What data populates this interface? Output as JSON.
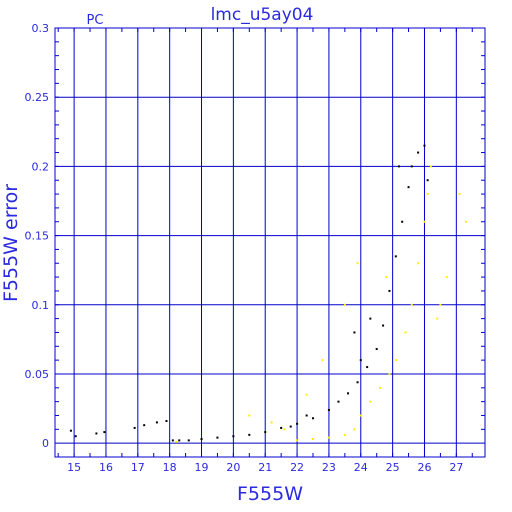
{
  "chart_data": {
    "type": "scatter",
    "title": "lmc_u5ay04",
    "corner_label": "PC",
    "xlabel": "F555W",
    "ylabel": "F555W error",
    "xlim": [
      14.4,
      27.9
    ],
    "ylim": [
      -0.01,
      0.3
    ],
    "x_ticks": [
      15,
      16,
      17,
      18,
      19,
      20,
      21,
      22,
      23,
      24,
      25,
      26,
      27
    ],
    "x_tick_labels": [
      "15",
      "16",
      "17",
      "18",
      "19",
      "20",
      "21",
      "22",
      "23",
      "24",
      "25",
      "26",
      "27"
    ],
    "y_ticks": [
      0,
      0.05,
      0.1,
      0.15,
      0.2,
      0.25,
      0.3
    ],
    "y_tick_labels": [
      "0",
      "0.05",
      "0.1",
      "0.15",
      "0.2",
      "0.25",
      "0.3"
    ],
    "grid": true,
    "colors": {
      "axes": "#0000cc",
      "text": "#2a2ae0",
      "series_black": "#000000",
      "series_yellow": "#ffee00"
    },
    "series": [
      {
        "color": "black",
        "points": [
          [
            14.9,
            0.009
          ],
          [
            15.05,
            0.005
          ],
          [
            15.7,
            0.007
          ],
          [
            15.95,
            0.008
          ],
          [
            16.9,
            0.011
          ],
          [
            17.2,
            0.013
          ],
          [
            17.6,
            0.015
          ],
          [
            17.9,
            0.016
          ],
          [
            18.1,
            0.002
          ],
          [
            18.3,
            0.002
          ],
          [
            18.6,
            0.002
          ],
          [
            19.0,
            0.003
          ],
          [
            19.5,
            0.004
          ],
          [
            20.0,
            0.005
          ],
          [
            20.5,
            0.006
          ],
          [
            21.0,
            0.008
          ],
          [
            21.5,
            0.011
          ],
          [
            22.0,
            0.014
          ],
          [
            22.5,
            0.018
          ],
          [
            23.0,
            0.024
          ],
          [
            23.3,
            0.03
          ],
          [
            23.6,
            0.036
          ],
          [
            23.9,
            0.044
          ],
          [
            24.2,
            0.055
          ],
          [
            24.5,
            0.068
          ],
          [
            24.7,
            0.085
          ],
          [
            24.9,
            0.11
          ],
          [
            25.1,
            0.135
          ],
          [
            25.3,
            0.16
          ],
          [
            25.5,
            0.185
          ],
          [
            25.6,
            0.2
          ],
          [
            25.8,
            0.21
          ],
          [
            26.0,
            0.215
          ],
          [
            26.1,
            0.19
          ],
          [
            25.2,
            0.2
          ],
          [
            23.8,
            0.08
          ],
          [
            24.3,
            0.09
          ],
          [
            22.3,
            0.02
          ],
          [
            21.8,
            0.012
          ],
          [
            24.0,
            0.06
          ]
        ]
      },
      {
        "color": "yellow",
        "points": [
          [
            18.2,
            0.001
          ],
          [
            20.5,
            0.02
          ],
          [
            21.2,
            0.015
          ],
          [
            21.6,
            0.01
          ],
          [
            22.0,
            0.002
          ],
          [
            22.5,
            0.003
          ],
          [
            23.0,
            0.004
          ],
          [
            23.5,
            0.006
          ],
          [
            23.8,
            0.01
          ],
          [
            24.0,
            0.02
          ],
          [
            24.3,
            0.03
          ],
          [
            24.6,
            0.04
          ],
          [
            24.9,
            0.05
          ],
          [
            25.1,
            0.06
          ],
          [
            25.4,
            0.08
          ],
          [
            25.6,
            0.1
          ],
          [
            25.8,
            0.13
          ],
          [
            26.0,
            0.16
          ],
          [
            26.1,
            0.18
          ],
          [
            26.2,
            0.2
          ],
          [
            26.5,
            0.1
          ],
          [
            26.7,
            0.12
          ],
          [
            27.1,
            0.18
          ],
          [
            27.3,
            0.16
          ],
          [
            23.5,
            0.1
          ],
          [
            23.9,
            0.13
          ],
          [
            24.8,
            0.12
          ],
          [
            26.4,
            0.09
          ],
          [
            22.8,
            0.06
          ],
          [
            22.3,
            0.035
          ]
        ]
      }
    ]
  }
}
